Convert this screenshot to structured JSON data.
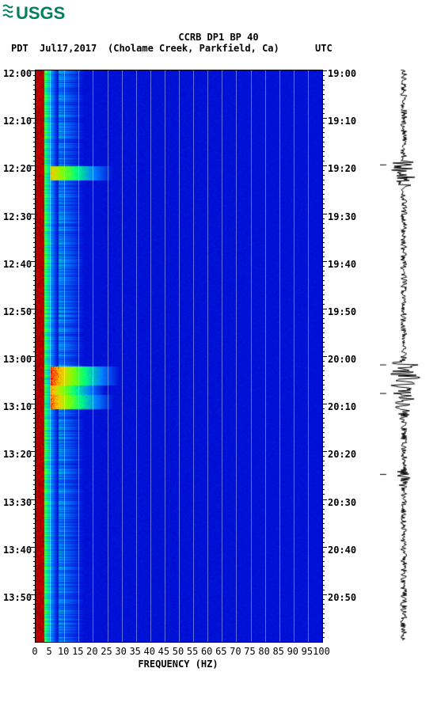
{
  "logo_text": "USGS",
  "title_line1": "CCRB DP1 BP 40",
  "date_label": "Jul17,2017",
  "location": "(Cholame Creek, Parkfield, Ca)",
  "pdt_label": "PDT",
  "utc_label": "UTC",
  "xlabel": "FREQUENCY (HZ)",
  "left_times": [
    "12:00",
    "12:10",
    "12:20",
    "12:30",
    "12:40",
    "12:50",
    "13:00",
    "13:10",
    "13:20",
    "13:30",
    "13:40",
    "13:50"
  ],
  "right_times": [
    "19:00",
    "19:10",
    "19:20",
    "19:30",
    "19:40",
    "19:50",
    "20:00",
    "20:10",
    "20:20",
    "20:30",
    "20:40",
    "20:50"
  ],
  "xticks_str": [
    "0",
    "5",
    "10",
    "15",
    "20",
    "25",
    "30",
    "35",
    "40",
    "45",
    "50",
    "55",
    "60",
    "65",
    "70",
    "75",
    "80",
    "85",
    "90",
    "95",
    "100"
  ],
  "spectrogram": {
    "xlim": [
      0,
      100
    ],
    "ylim_minutes": [
      0,
      120
    ],
    "bg": "#0000d0",
    "palette": {
      "low": "#0000d0",
      "mid1": "#0080ff",
      "mid2": "#00ffff",
      "mid3": "#80ff40",
      "mid4": "#ffff00",
      "high": "#ff0000",
      "dark": "#800000"
    },
    "hot_band": {
      "freq_lo": 0,
      "freq_hi": 8,
      "base_intensity": 0.95
    },
    "noise_band": {
      "freq_lo": 8,
      "freq_hi": 18,
      "base_intensity": 0.45
    },
    "events": [
      {
        "t": 20,
        "dur": 3,
        "freq_lo": 5,
        "freq_hi": 28,
        "intensity": 0.8
      },
      {
        "t": 62,
        "dur": 4,
        "freq_lo": 5,
        "freq_hi": 30,
        "intensity": 0.95
      },
      {
        "t": 66,
        "dur": 2,
        "freq_lo": 5,
        "freq_hi": 25,
        "intensity": 0.85
      },
      {
        "t": 68,
        "dur": 3,
        "freq_lo": 5,
        "freq_hi": 28,
        "intensity": 0.9
      }
    ],
    "row_noise_seed": 17
  },
  "seismogram": {
    "color": "#000000",
    "baseline_amp": 4,
    "events": [
      {
        "t": 20,
        "amp": 18,
        "dur": 6
      },
      {
        "t": 62,
        "amp": 26,
        "dur": 8
      },
      {
        "t": 68,
        "amp": 14,
        "dur": 6
      },
      {
        "t": 85,
        "amp": 10,
        "dur": 4
      }
    ]
  }
}
